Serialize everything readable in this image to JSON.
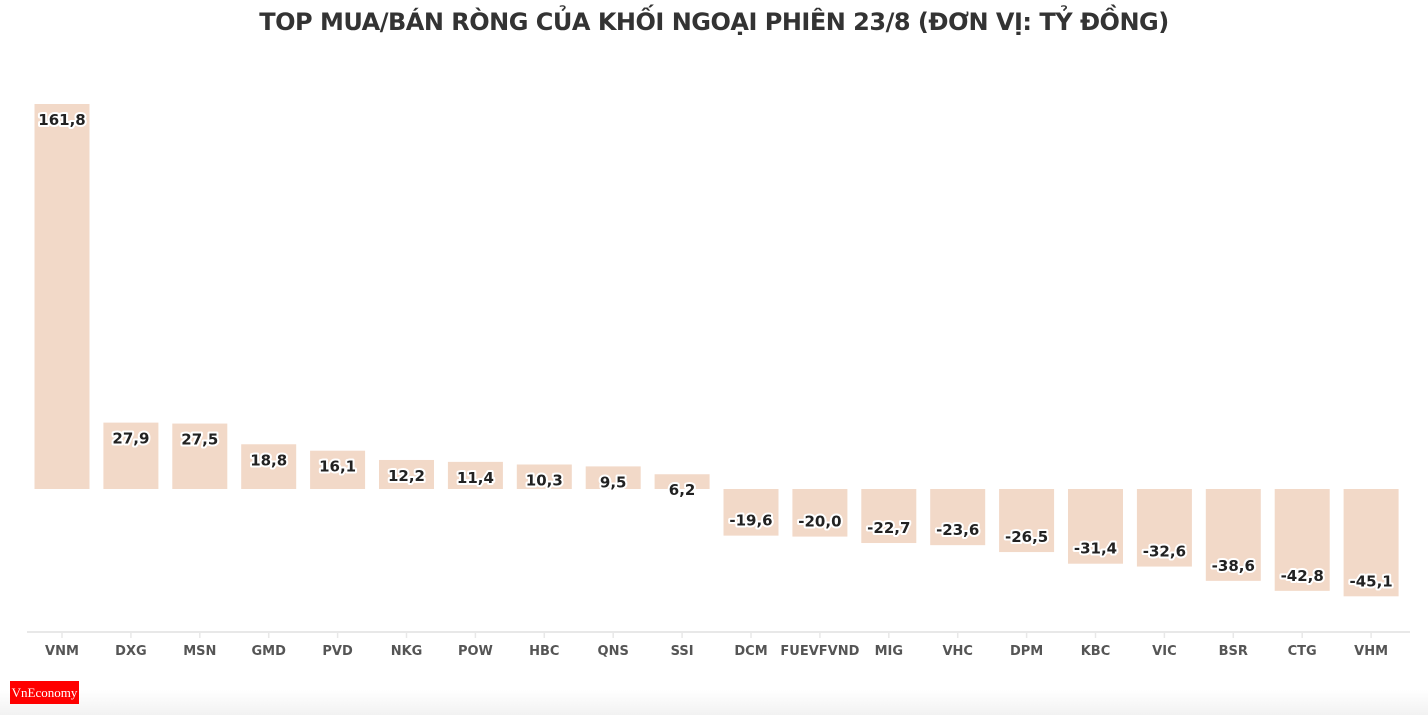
{
  "chart_data": {
    "type": "bar",
    "title": "TOP MUA/BÁN RÒNG CỦA KHỐI NGOẠI PHIÊN 23/8 (ĐƠN VỊ: TỶ ĐỒNG)",
    "categories": [
      "VNM",
      "DXG",
      "MSN",
      "GMD",
      "PVD",
      "NKG",
      "POW",
      "HBC",
      "QNS",
      "SSI",
      "DCM",
      "FUEVFVND",
      "MIG",
      "VHC",
      "DPM",
      "KBC",
      "VIC",
      "BSR",
      "CTG",
      "VHM"
    ],
    "values": [
      161.8,
      27.9,
      27.5,
      18.8,
      16.1,
      12.2,
      11.4,
      10.3,
      9.5,
      6.2,
      -19.6,
      -20.0,
      -22.7,
      -23.6,
      -26.5,
      -31.4,
      -32.6,
      -38.6,
      -42.8,
      -45.1
    ],
    "labels": [
      "161,8",
      "27,9",
      "27,5",
      "18,8",
      "16,1",
      "12,2",
      "11,4",
      "10,3",
      "9,5",
      "6,2",
      "-19,6",
      "-20,0",
      "-22,7",
      "-23,6",
      "-26,5",
      "-31,4",
      "-32,6",
      "-38,6",
      "-42,8",
      "-45,1"
    ],
    "xlabel": "",
    "ylabel": "",
    "grid": false,
    "bar_color": "#f2d9c8"
  },
  "logo": {
    "text": "VnEconomy"
  }
}
